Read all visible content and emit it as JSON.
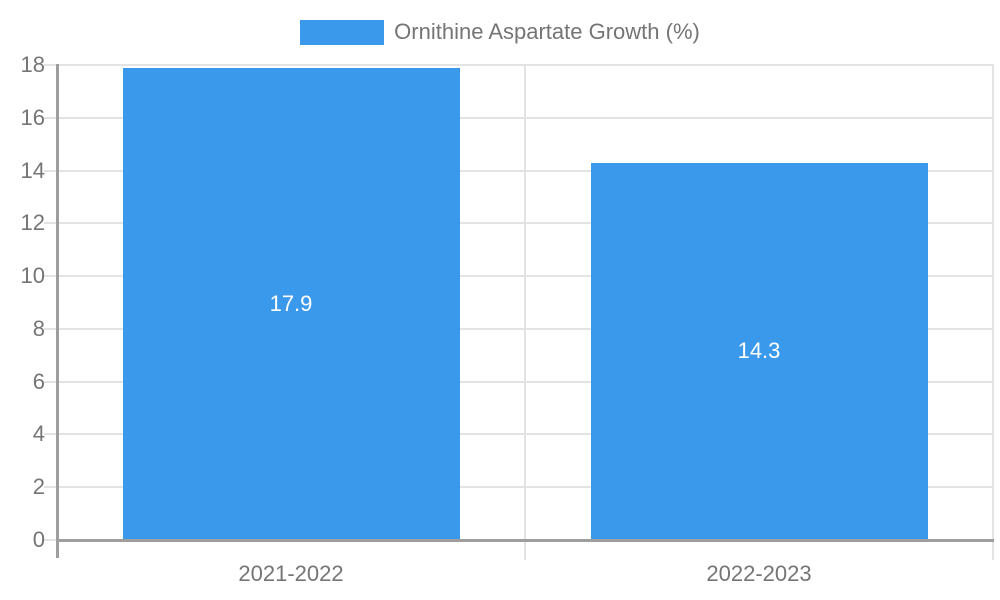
{
  "chart_data": {
    "type": "bar",
    "legend_label": "Ornithine Aspartate Growth (%)",
    "categories": [
      "2021-2022",
      "2022-2023"
    ],
    "values": [
      17.9,
      14.3
    ],
    "value_labels": [
      "17.9",
      "14.3"
    ],
    "ylim": [
      0,
      18
    ],
    "ytick_step": 2,
    "ytick_labels": [
      "0",
      "2",
      "4",
      "6",
      "8",
      "10",
      "12",
      "14",
      "16",
      "18"
    ],
    "grid": true,
    "legend_position": "top-center",
    "xlabel": "",
    "ylabel": ""
  },
  "colors": {
    "bar": "#3B99EC",
    "gridline": "#E3E3E3",
    "axis_line": "#9E9E9E",
    "axis_text": "#757575",
    "value_label_text": "#FFFFFF",
    "background": "#FFFFFF"
  }
}
